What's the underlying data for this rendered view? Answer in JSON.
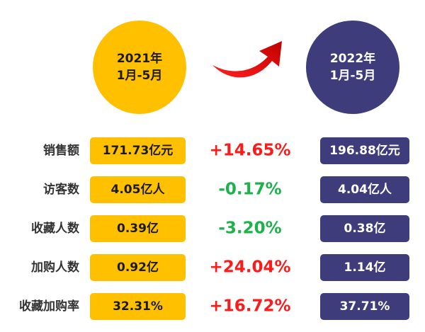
{
  "periods": [
    {
      "lines": [
        "2021年",
        "1月-5月"
      ],
      "color": "#FFC000",
      "text_color": "#1a1a1a"
    },
    {
      "lines": [
        "2022年",
        "1月-5月"
      ],
      "color": "#3F3C7C",
      "text_color": "#ffffff"
    }
  ],
  "rows": [
    {
      "label": "销售额",
      "before": "171.73亿元",
      "change": "+14.65%",
      "change_color": "#FF1A1A",
      "after": "196.88亿元"
    },
    {
      "label": "访客数",
      "before": "4.05亿人",
      "change": "-0.17%",
      "change_color": "#1DB14B",
      "after": "4.04亿人"
    },
    {
      "label": "收藏人数",
      "before": "0.39亿",
      "change": "-3.20%",
      "change_color": "#1DB14B",
      "after": "0.38亿"
    },
    {
      "label": "加购人数",
      "before": "0.92亿",
      "change": "+24.04%",
      "change_color": "#FF1A1A",
      "after": "1.14亿"
    },
    {
      "label": "收藏加购率",
      "before": "32.31%",
      "change": "+16.72%",
      "change_color": "#FF1A1A",
      "after": "37.71%"
    }
  ]
}
